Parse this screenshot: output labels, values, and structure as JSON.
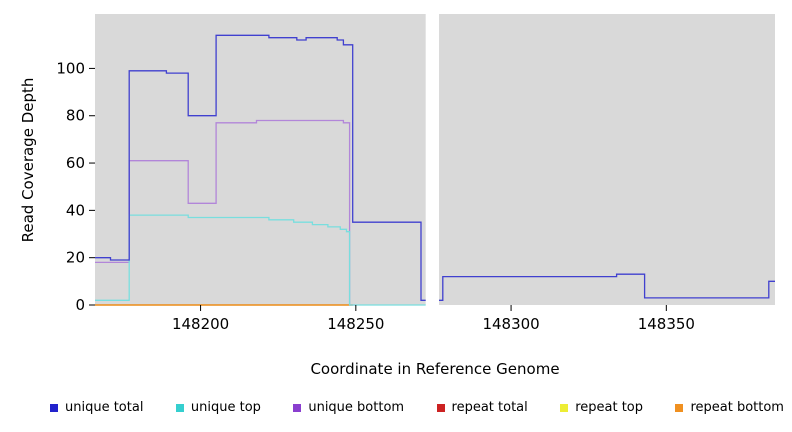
{
  "chart_data": {
    "type": "line",
    "title": "",
    "xlabel": "Coordinate in Reference Genome",
    "ylabel": "Read Coverage Depth",
    "xlim": [
      148166,
      148385
    ],
    "ylim": [
      0,
      123
    ],
    "x_ticks": [
      148200,
      148250,
      148300,
      148350
    ],
    "y_ticks": [
      0,
      20,
      40,
      60,
      80,
      100
    ],
    "plot_background": "#d9d9d9",
    "gap_region": {
      "x_start": 148272.5,
      "x_end": 148276.8
    },
    "grid": false,
    "legend_position": "bottom",
    "series": [
      {
        "name": "repeat total",
        "color": "#cc2222",
        "segments": [
          [
            [
              148166,
              0
            ],
            [
              148249,
              0
            ]
          ]
        ]
      },
      {
        "name": "repeat top",
        "color": "#e8e830",
        "segments": [
          [
            [
              148166,
              0
            ],
            [
              148249,
              0
            ]
          ]
        ]
      },
      {
        "name": "repeat bottom",
        "color": "#f09020",
        "segments": [
          [
            [
              148166,
              0
            ],
            [
              148249,
              0
            ]
          ]
        ]
      },
      {
        "name": "unique bottom",
        "color": "#b286d9",
        "segments": [
          [
            [
              148166,
              18
            ],
            [
              148177,
              18
            ],
            [
              148177,
              61
            ],
            [
              148196,
              61
            ],
            [
              148196,
              43
            ],
            [
              148205,
              43
            ],
            [
              148205,
              77
            ],
            [
              148218,
              77
            ],
            [
              148218,
              78
            ],
            [
              148246,
              78
            ],
            [
              148246,
              77
            ],
            [
              148248,
              77
            ],
            [
              148248,
              0
            ],
            [
              148250,
              0
            ]
          ]
        ]
      },
      {
        "name": "unique top",
        "color": "#79dede",
        "segments": [
          [
            [
              148166,
              2
            ],
            [
              148177,
              2
            ],
            [
              148177,
              38
            ],
            [
              148196,
              38
            ],
            [
              148196,
              37
            ],
            [
              148222,
              37
            ],
            [
              148222,
              36
            ],
            [
              148230,
              36
            ],
            [
              148230,
              35
            ],
            [
              148236,
              35
            ],
            [
              148236,
              34
            ],
            [
              148241,
              34
            ],
            [
              148241,
              33
            ],
            [
              148245,
              33
            ],
            [
              148245,
              32
            ],
            [
              148247,
              32
            ],
            [
              148247,
              31
            ],
            [
              148248,
              31
            ],
            [
              148248,
              0
            ],
            [
              148272.5,
              0
            ]
          ]
        ]
      },
      {
        "name": "unique total",
        "color": "#4040cf",
        "segments": [
          [
            [
              148166,
              20
            ],
            [
              148171,
              20
            ],
            [
              148171,
              19
            ],
            [
              148177,
              19
            ],
            [
              148177,
              99
            ],
            [
              148189,
              99
            ],
            [
              148189,
              98
            ],
            [
              148196,
              98
            ],
            [
              148196,
              80
            ],
            [
              148205,
              80
            ],
            [
              148205,
              114
            ],
            [
              148222,
              114
            ],
            [
              148222,
              113
            ],
            [
              148231,
              113
            ],
            [
              148231,
              112
            ],
            [
              148234,
              112
            ],
            [
              148234,
              113
            ],
            [
              148244,
              113
            ],
            [
              148244,
              112
            ],
            [
              148246,
              112
            ],
            [
              148246,
              110
            ],
            [
              148249,
              110
            ],
            [
              148249,
              35
            ],
            [
              148271,
              35
            ],
            [
              148271,
              2
            ],
            [
              148272.5,
              2
            ]
          ],
          [
            [
              148276.8,
              2
            ],
            [
              148278,
              2
            ],
            [
              148278,
              12
            ],
            [
              148334,
              12
            ],
            [
              148334,
              13
            ],
            [
              148343,
              13
            ],
            [
              148343,
              3
            ],
            [
              148383,
              3
            ],
            [
              148383,
              10
            ],
            [
              148385,
              10
            ]
          ]
        ]
      }
    ],
    "legend": [
      {
        "label": "unique total",
        "color": "#2222cc"
      },
      {
        "label": "unique top",
        "color": "#35cfcf"
      },
      {
        "label": "unique bottom",
        "color": "#8a3fcf"
      },
      {
        "label": "repeat total",
        "color": "#cc2222"
      },
      {
        "label": "repeat top",
        "color": "#eded35"
      },
      {
        "label": "repeat bottom",
        "color": "#f09020"
      }
    ]
  }
}
